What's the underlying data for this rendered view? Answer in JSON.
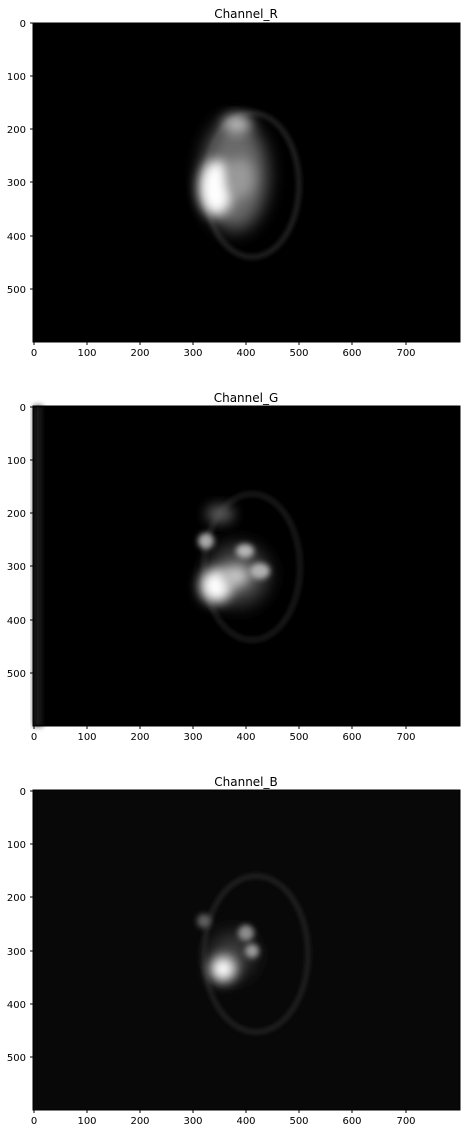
{
  "figure": {
    "panels": [
      {
        "title": "Channel_R",
        "x_ticks": [
          "0",
          "100",
          "200",
          "300",
          "400",
          "500",
          "600",
          "700"
        ],
        "y_ticks": [
          "0",
          "100",
          "200",
          "300",
          "400",
          "500"
        ],
        "background_color": "#000000",
        "content": "bright irregular blob inside faint elliptical ring"
      },
      {
        "title": "Channel_G",
        "x_ticks": [
          "0",
          "100",
          "200",
          "300",
          "400",
          "500",
          "600",
          "700"
        ],
        "y_ticks": [
          "0",
          "100",
          "200",
          "300",
          "400",
          "500"
        ],
        "background_color": "#000000",
        "content": "bright blob with smaller spots inside faint elliptical ring, faint vertical band at left edge"
      },
      {
        "title": "Channel_B",
        "x_ticks": [
          "0",
          "100",
          "200",
          "300",
          "400",
          "500",
          "600",
          "700"
        ],
        "y_ticks": [
          "0",
          "100",
          "200",
          "300",
          "400",
          "500"
        ],
        "background_color": "#080808",
        "content": "small bright blob inside faint elliptical ring"
      }
    ]
  }
}
